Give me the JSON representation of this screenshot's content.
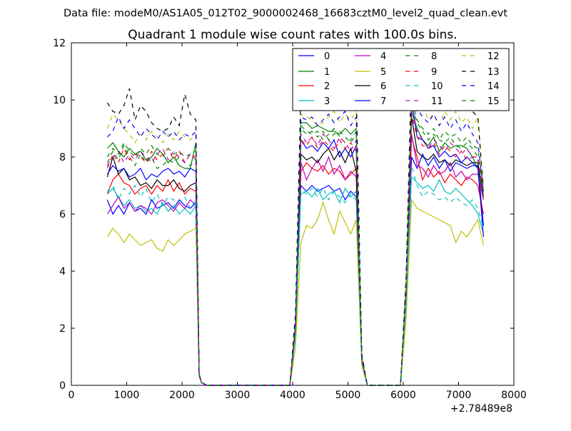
{
  "figure": {
    "suptitle": "Data file: modeM0/AS1A05_012T02_9000002468_16683cztM0_level2_quad_clean.evt"
  },
  "chart_data": {
    "type": "line",
    "title": "Quadrant 1 module wise count rates with 100.0s bins.",
    "xlabel": "",
    "ylabel": "",
    "x_offset_label": "+2.78489e8",
    "xlim": [
      0,
      8000
    ],
    "ylim": [
      0,
      12
    ],
    "xticks": [
      0,
      1000,
      2000,
      3000,
      4000,
      5000,
      6000,
      7000,
      8000
    ],
    "yticks": [
      0,
      2,
      4,
      6,
      8,
      10,
      12
    ],
    "grid": false,
    "legend": {
      "placement": "top-right",
      "columns": 4
    },
    "x": [
      650,
      750,
      850,
      950,
      1050,
      1150,
      1250,
      1350,
      1450,
      1550,
      1650,
      1750,
      1850,
      1950,
      2050,
      2150,
      2250,
      2310,
      2350,
      2450,
      2550,
      3950,
      4050,
      4150,
      4250,
      4350,
      4450,
      4550,
      4650,
      4750,
      4850,
      4950,
      5050,
      5150,
      5250,
      5350,
      5450,
      5950,
      6050,
      6150,
      6250,
      6350,
      6450,
      6550,
      6650,
      6750,
      6850,
      6950,
      7050,
      7150,
      7250,
      7350,
      7450
    ],
    "series": [
      {
        "name": "0",
        "color": "#0000ff",
        "dash": "solid",
        "values": [
          6.5,
          6.0,
          6.3,
          6.0,
          6.4,
          6.1,
          6.2,
          6.0,
          6.5,
          6.2,
          6.3,
          6.4,
          6.2,
          6.5,
          6.3,
          6.2,
          6.4,
          0.4,
          0.1,
          0,
          0,
          0,
          1.8,
          7.0,
          6.8,
          7.0,
          6.8,
          6.9,
          7.0,
          6.8,
          6.9,
          6.5,
          6.8,
          6.6,
          0.9,
          0,
          0,
          0,
          3.0,
          8.0,
          7.6,
          8.1,
          7.7,
          8.0,
          7.6,
          7.9,
          7.5,
          7.8,
          7.7,
          7.6,
          7.7,
          7.7,
          5.6
        ]
      },
      {
        "name": "1",
        "color": "#008000",
        "dash": "solid",
        "values": [
          8.3,
          8.5,
          8.2,
          8.0,
          8.3,
          8.1,
          8.2,
          7.9,
          8.0,
          8.3,
          8.1,
          7.8,
          8.0,
          7.7,
          7.6,
          7.6,
          8.5,
          0.4,
          0.1,
          0,
          0,
          0,
          2.1,
          9.2,
          9.2,
          9.0,
          9.1,
          9.0,
          8.9,
          8.9,
          8.8,
          9.0,
          8.8,
          9.0,
          1.0,
          0,
          0,
          0,
          3.4,
          9.6,
          9.0,
          8.6,
          8.4,
          8.7,
          8.2,
          8.5,
          8.3,
          8.4,
          8.4,
          8.3,
          8.0,
          7.6,
          6.6
        ]
      },
      {
        "name": "2",
        "color": "#ff0000",
        "dash": "solid",
        "values": [
          6.7,
          7.2,
          7.4,
          7.1,
          7.0,
          6.7,
          6.9,
          7.0,
          6.7,
          7.0,
          6.8,
          7.2,
          6.8,
          7.1,
          6.7,
          6.9,
          6.8,
          0.4,
          0.1,
          0,
          0,
          0,
          1.9,
          7.5,
          7.8,
          7.6,
          7.5,
          7.7,
          7.4,
          7.6,
          7.5,
          7.2,
          7.4,
          7.6,
          0.8,
          0,
          0,
          0,
          3.1,
          8.7,
          8.0,
          7.2,
          7.6,
          7.3,
          7.5,
          7.1,
          7.4,
          7.2,
          7.0,
          7.3,
          7.2,
          7.0,
          6.0
        ]
      },
      {
        "name": "3",
        "color": "#00bfbf",
        "dash": "solid",
        "values": [
          6.7,
          6.9,
          6.6,
          6.3,
          6.5,
          6.2,
          6.3,
          6.1,
          6.2,
          6.0,
          6.4,
          6.1,
          6.3,
          6.0,
          6.2,
          6.0,
          6.3,
          0.4,
          0.1,
          0,
          0,
          0,
          1.7,
          6.7,
          6.8,
          6.6,
          6.9,
          6.5,
          6.7,
          6.8,
          6.4,
          6.9,
          6.6,
          6.8,
          0.8,
          0,
          0,
          0,
          2.8,
          7.3,
          7.1,
          6.9,
          7.0,
          6.8,
          7.2,
          6.8,
          6.7,
          6.9,
          6.7,
          6.5,
          6.3,
          6.0,
          5.3
        ]
      },
      {
        "name": "4",
        "color": "#bf00bf",
        "dash": "solid",
        "values": [
          6.0,
          6.3,
          6.6,
          6.2,
          6.4,
          6.1,
          6.3,
          6.2,
          6.0,
          6.4,
          6.5,
          6.3,
          6.1,
          6.4,
          6.2,
          6.5,
          6.3,
          0.4,
          0.1,
          0,
          0,
          0,
          2.0,
          7.8,
          7.2,
          7.6,
          7.9,
          7.5,
          8.0,
          7.4,
          7.7,
          7.2,
          7.5,
          7.3,
          0.9,
          0,
          0,
          0,
          3.2,
          8.8,
          7.7,
          7.6,
          7.3,
          7.7,
          7.4,
          7.5,
          7.8,
          7.3,
          7.5,
          7.2,
          7.4,
          7.4,
          6.5
        ]
      },
      {
        "name": "5",
        "color": "#bfbf00",
        "dash": "solid",
        "values": [
          5.2,
          5.5,
          5.3,
          5.0,
          5.3,
          5.1,
          4.9,
          5.0,
          5.1,
          4.8,
          4.7,
          5.1,
          4.9,
          5.1,
          5.3,
          5.4,
          5.5,
          0.3,
          0.1,
          0,
          0,
          0,
          1.3,
          5.0,
          5.6,
          5.5,
          5.8,
          6.4,
          5.8,
          5.3,
          6.1,
          5.7,
          5.3,
          5.8,
          0.7,
          0,
          0,
          0,
          2.3,
          6.5,
          6.2,
          6.1,
          6.0,
          5.9,
          5.8,
          5.7,
          5.6,
          5.0,
          5.4,
          5.2,
          5.5,
          5.8,
          4.9
        ]
      },
      {
        "name": "6",
        "color": "#000000",
        "dash": "solid",
        "values": [
          7.3,
          8.0,
          7.4,
          7.6,
          7.2,
          7.3,
          7.0,
          7.1,
          6.9,
          7.2,
          7.0,
          7.0,
          7.2,
          6.9,
          6.8,
          7.0,
          7.1,
          0.4,
          0.1,
          0,
          0,
          0,
          2.0,
          8.1,
          7.9,
          8.0,
          7.8,
          8.1,
          8.3,
          7.9,
          8.2,
          7.8,
          8.3,
          7.5,
          0.9,
          0,
          0,
          0,
          3.3,
          9.4,
          8.2,
          8.0,
          7.9,
          8.1,
          7.8,
          7.9,
          7.7,
          7.9,
          7.8,
          7.7,
          7.8,
          7.8,
          6.6
        ]
      },
      {
        "name": "7",
        "color": "#0000ff",
        "dash": "solid",
        "values": [
          7.4,
          7.7,
          7.5,
          7.6,
          7.3,
          7.4,
          7.6,
          7.2,
          7.4,
          7.3,
          7.5,
          7.6,
          7.4,
          7.5,
          7.3,
          7.6,
          7.5,
          0.4,
          0.1,
          0,
          0,
          0,
          2.1,
          8.6,
          8.3,
          8.4,
          8.2,
          8.5,
          8.3,
          8.6,
          8.0,
          8.3,
          8.0,
          8.4,
          1.0,
          0,
          0,
          0,
          3.5,
          10.0,
          8.7,
          8.6,
          8.3,
          8.4,
          8.0,
          8.2,
          8.0,
          8.1,
          7.8,
          8.0,
          7.8,
          7.6,
          5.2
        ]
      },
      {
        "name": "8",
        "color": "#008000",
        "dash": "dashed",
        "values": [
          7.8,
          8.2,
          7.9,
          8.4,
          8.0,
          7.7,
          8.1,
          7.8,
          8.0,
          7.6,
          7.7,
          7.9,
          7.8,
          8.0,
          7.8,
          7.7,
          7.9,
          0.4,
          0.1,
          0,
          0,
          0,
          2.1,
          9.1,
          8.9,
          8.8,
          8.9,
          8.6,
          8.8,
          9.0,
          8.7,
          8.5,
          8.6,
          8.9,
          0.9,
          0,
          0,
          0,
          3.4,
          9.8,
          9.2,
          8.9,
          8.6,
          8.8,
          8.6,
          8.5,
          8.7,
          8.4,
          8.3,
          8.5,
          8.3,
          8.0,
          6.5
        ]
      },
      {
        "name": "9",
        "color": "#ff0000",
        "dash": "dashed",
        "values": [
          7.6,
          8.1,
          7.8,
          8.3,
          7.9,
          8.1,
          8.0,
          7.8,
          8.2,
          7.9,
          8.1,
          8.3,
          7.9,
          8.2,
          7.8,
          8.1,
          8.0,
          0.4,
          0.1,
          0,
          0,
          0,
          2.0,
          8.6,
          8.4,
          8.7,
          8.3,
          8.6,
          8.4,
          8.2,
          8.6,
          8.3,
          8.5,
          8.2,
          0.9,
          0,
          0,
          0,
          3.3,
          9.5,
          8.7,
          8.4,
          8.3,
          8.5,
          8.1,
          8.4,
          8.2,
          8.0,
          8.2,
          7.9,
          8.0,
          7.9,
          6.6
        ]
      },
      {
        "name": "10",
        "color": "#00bfbf",
        "dash": "dashed",
        "values": [
          6.8,
          7.0,
          6.5,
          6.9,
          6.7,
          7.0,
          6.6,
          6.9,
          6.4,
          6.7,
          6.3,
          6.6,
          6.5,
          6.4,
          6.6,
          6.2,
          6.5,
          0.4,
          0.1,
          0,
          0,
          0,
          1.8,
          6.9,
          6.7,
          6.9,
          6.6,
          6.9,
          6.5,
          6.8,
          6.6,
          6.4,
          6.7,
          6.5,
          0.8,
          0,
          0,
          0,
          2.9,
          7.7,
          7.0,
          6.6,
          6.8,
          6.7,
          6.5,
          6.6,
          6.4,
          6.6,
          6.4,
          6.3,
          6.5,
          6.2,
          5.5
        ]
      },
      {
        "name": "11",
        "color": "#bf00bf",
        "dash": "dashed",
        "values": [
          7.7,
          8.0,
          8.2,
          7.8,
          8.1,
          7.9,
          8.2,
          8.0,
          7.8,
          8.1,
          8.3,
          7.9,
          8.2,
          8.0,
          7.8,
          8.1,
          7.9,
          0.4,
          0.1,
          0,
          0,
          0,
          2.1,
          8.8,
          8.5,
          8.7,
          8.4,
          8.8,
          8.6,
          8.3,
          8.7,
          8.5,
          8.2,
          8.6,
          0.9,
          0,
          0,
          0,
          3.4,
          9.6,
          8.9,
          8.6,
          8.3,
          8.6,
          8.4,
          8.2,
          8.5,
          8.3,
          8.1,
          8.3,
          8.0,
          8.0,
          6.7
        ]
      },
      {
        "name": "12",
        "color": "#bfbf00",
        "dash": "dashed",
        "values": [
          9.0,
          9.5,
          9.3,
          9.0,
          8.8,
          8.5,
          8.8,
          8.6,
          8.9,
          8.7,
          8.5,
          8.8,
          8.6,
          8.9,
          8.7,
          8.6,
          8.8,
          0.4,
          0.1,
          0,
          0,
          0,
          2.3,
          9.5,
          9.4,
          9.3,
          9.1,
          9.2,
          9.4,
          9.6,
          9.2,
          9.5,
          9.3,
          9.6,
          1.0,
          0,
          0,
          0,
          3.6,
          10.5,
          9.6,
          9.8,
          9.3,
          9.5,
          9.1,
          9.6,
          9.3,
          9.6,
          9.2,
          9.4,
          9.0,
          9.4,
          7.0
        ]
      },
      {
        "name": "13",
        "color": "#000000",
        "dash": "dashed",
        "values": [
          9.9,
          9.6,
          9.5,
          9.8,
          10.4,
          9.3,
          9.8,
          9.6,
          9.2,
          9.0,
          8.9,
          9.0,
          9.4,
          9.1,
          10.2,
          9.5,
          9.3,
          0.4,
          0.1,
          0,
          0,
          0,
          2.5,
          10.4,
          10.1,
          9.8,
          10.0,
          9.9,
          10.3,
          9.7,
          10.1,
          10.5,
          10.5,
          10.4,
          1.1,
          0,
          0,
          0,
          3.8,
          11.2,
          10.5,
          10.4,
          10.1,
          10.2,
          10.0,
          10.4,
          9.9,
          10.1,
          9.8,
          9.8,
          9.6,
          9.4,
          6.7
        ]
      },
      {
        "name": "14",
        "color": "#0000ff",
        "dash": "dashed",
        "values": [
          8.7,
          8.9,
          9.4,
          9.0,
          9.3,
          9.0,
          8.7,
          9.0,
          8.8,
          8.6,
          8.9,
          8.7,
          8.9,
          8.6,
          8.8,
          8.7,
          8.9,
          0.4,
          0.1,
          0,
          0,
          0,
          2.2,
          9.4,
          9.3,
          9.4,
          9.1,
          9.3,
          9.5,
          9.2,
          9.4,
          9.6,
          9.1,
          9.4,
          1.0,
          0,
          0,
          0,
          3.6,
          10.2,
          9.7,
          9.4,
          9.2,
          9.5,
          9.1,
          9.4,
          9.0,
          9.3,
          8.9,
          9.2,
          8.8,
          8.5,
          6.8
        ]
      },
      {
        "name": "15",
        "color": "#008000",
        "dash": "dashed",
        "values": [
          8.0,
          8.3,
          8.1,
          8.5,
          8.2,
          8.0,
          8.3,
          8.1,
          8.4,
          8.1,
          8.0,
          8.3,
          8.1,
          8.2,
          8.0,
          8.1,
          8.2,
          0.4,
          0.1,
          0,
          0,
          0,
          2.1,
          9.0,
          8.8,
          8.9,
          8.7,
          8.9,
          8.6,
          8.8,
          8.9,
          8.7,
          8.5,
          8.8,
          0.9,
          0,
          0,
          0,
          3.5,
          10.0,
          9.3,
          9.0,
          8.8,
          9.0,
          8.6,
          8.9,
          8.7,
          8.8,
          8.5,
          8.7,
          8.4,
          8.3,
          6.7
        ]
      }
    ]
  }
}
